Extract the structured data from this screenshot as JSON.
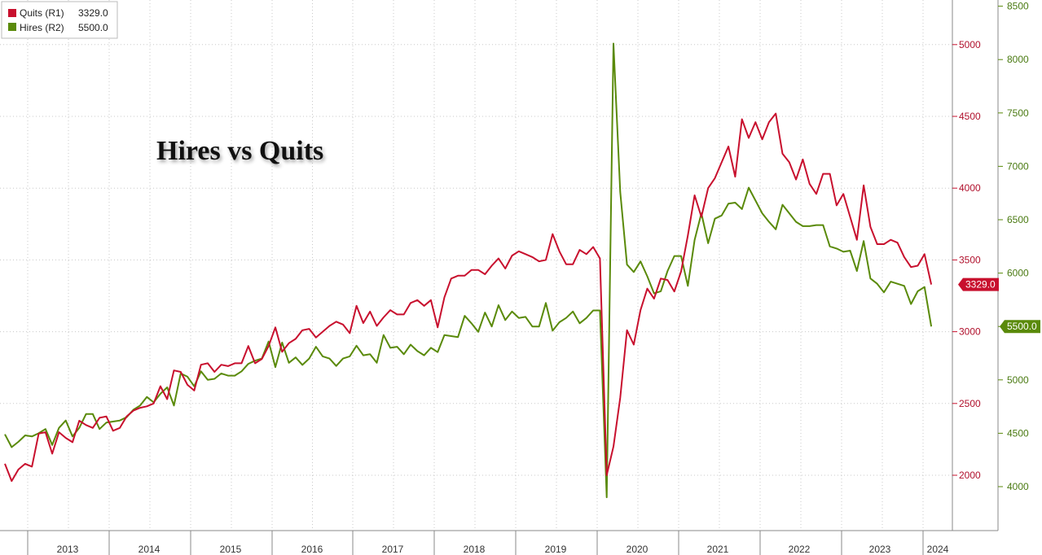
{
  "chart_data": {
    "type": "line",
    "title": "Hires vs Quits",
    "legend": {
      "placement": "top-left",
      "entries": [
        {
          "label": "Quits (R1)",
          "value": "3329.0",
          "color": "#c8102e"
        },
        {
          "label": "Hires (R2)",
          "value": "5500.0",
          "color": "#5a8a0a"
        }
      ]
    },
    "x_axis": {
      "labels": [
        "2013",
        "2014",
        "2015",
        "2016",
        "2017",
        "2018",
        "2019",
        "2020",
        "2021",
        "2022",
        "2023",
        "2024"
      ],
      "range": [
        "2012-12",
        "2024-04"
      ]
    },
    "axis_r1": {
      "name": "Quits",
      "ticks": [
        2000,
        2500,
        3000,
        3500,
        4000,
        4500,
        5000
      ],
      "range": [
        1680,
        5200
      ]
    },
    "axis_r2": {
      "name": "Hires",
      "ticks": [
        4000,
        4500,
        5000,
        5500,
        6000,
        6500,
        7000,
        7500,
        8000,
        8500
      ],
      "range": [
        3700,
        8550
      ]
    },
    "grid": true,
    "series": [
      {
        "name": "Quits",
        "axis": "R1",
        "color": "#c8102e",
        "last_value": "3329.0",
        "values": [
          2080,
          1960,
          2040,
          2080,
          2060,
          2290,
          2300,
          2150,
          2300,
          2260,
          2230,
          2380,
          2350,
          2330,
          2400,
          2410,
          2310,
          2330,
          2410,
          2450,
          2470,
          2480,
          2500,
          2620,
          2530,
          2730,
          2720,
          2630,
          2590,
          2770,
          2780,
          2720,
          2770,
          2760,
          2780,
          2780,
          2900,
          2780,
          2810,
          2900,
          3030,
          2860,
          2920,
          2950,
          3010,
          3020,
          2960,
          3000,
          3040,
          3070,
          3050,
          2990,
          3180,
          3060,
          3140,
          3040,
          3100,
          3150,
          3120,
          3120,
          3200,
          3220,
          3180,
          3220,
          3030,
          3240,
          3370,
          3390,
          3390,
          3430,
          3430,
          3400,
          3460,
          3510,
          3440,
          3530,
          3560,
          3540,
          3520,
          3490,
          3500,
          3680,
          3560,
          3470,
          3470,
          3570,
          3540,
          3590,
          3510,
          2000,
          2200,
          2540,
          3010,
          2910,
          3150,
          3300,
          3230,
          3370,
          3360,
          3280,
          3420,
          3670,
          3950,
          3800,
          4000,
          4070,
          4180,
          4290,
          4080,
          4480,
          4350,
          4460,
          4340,
          4460,
          4520,
          4240,
          4180,
          4060,
          4200,
          4030,
          3960,
          4100,
          4100,
          3880,
          3960,
          3800,
          3640,
          4020,
          3730,
          3610,
          3610,
          3640,
          3620,
          3520,
          3450,
          3460,
          3540,
          3329
        ]
      },
      {
        "name": "Hires",
        "axis": "R2",
        "color": "#5a8a0a",
        "last_value": "5500.0",
        "values": [
          4490,
          4370,
          4420,
          4480,
          4470,
          4500,
          4540,
          4390,
          4550,
          4620,
          4470,
          4550,
          4680,
          4680,
          4540,
          4600,
          4610,
          4620,
          4650,
          4720,
          4760,
          4840,
          4790,
          4870,
          4930,
          4760,
          5060,
          5030,
          4940,
          5080,
          5000,
          5010,
          5060,
          5040,
          5040,
          5080,
          5150,
          5180,
          5200,
          5360,
          5120,
          5350,
          5160,
          5210,
          5140,
          5200,
          5310,
          5220,
          5200,
          5130,
          5200,
          5220,
          5320,
          5230,
          5240,
          5160,
          5420,
          5300,
          5310,
          5240,
          5330,
          5270,
          5230,
          5300,
          5260,
          5420,
          5410,
          5400,
          5600,
          5530,
          5450,
          5630,
          5500,
          5700,
          5560,
          5640,
          5580,
          5590,
          5500,
          5500,
          5720,
          5460,
          5540,
          5580,
          5640,
          5530,
          5580,
          5650,
          5650,
          3900,
          8150,
          6760,
          6080,
          6010,
          6110,
          5970,
          5810,
          5830,
          6020,
          6160,
          6160,
          5880,
          6310,
          6560,
          6280,
          6510,
          6540,
          6650,
          6660,
          6600,
          6800,
          6680,
          6560,
          6480,
          6410,
          6640,
          6560,
          6480,
          6440,
          6440,
          6450,
          6450,
          6250,
          6230,
          6200,
          6210,
          6020,
          6300,
          5950,
          5900,
          5820,
          5920,
          5900,
          5880,
          5710,
          5830,
          5870,
          5500
        ]
      }
    ]
  }
}
